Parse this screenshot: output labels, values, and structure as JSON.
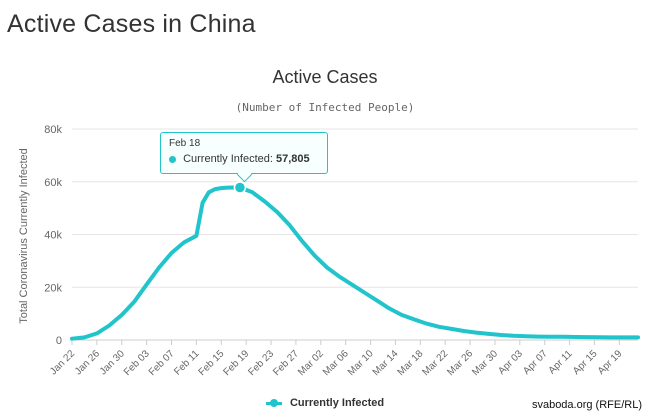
{
  "page": {
    "title": "Active Cases in China",
    "credit": "svaboda.org (RFE/RL)"
  },
  "chart_data": {
    "type": "line",
    "title": "Active Cases",
    "subtitle": "(Number of Infected People)",
    "ylabel": "Total Coronavirus Currently Infected",
    "xlabel": "",
    "ylim": [
      0,
      80000
    ],
    "yticks": [
      0,
      20000,
      40000,
      60000,
      80000
    ],
    "ytick_labels": [
      "0",
      "20k",
      "40k",
      "60k",
      "80k"
    ],
    "xtick_labels": [
      "Jan 22",
      "Jan 26",
      "Jan 30",
      "Feb 03",
      "Feb 07",
      "Feb 11",
      "Feb 15",
      "Feb 19",
      "Feb 23",
      "Feb 27",
      "Mar 02",
      "Mar 06",
      "Mar 10",
      "Mar 14",
      "Mar 18",
      "Mar 22",
      "Mar 26",
      "Mar 30",
      "Apr 03",
      "Apr 07",
      "Apr 11",
      "Apr 15",
      "Apr 19"
    ],
    "grid": true,
    "legend_position": "bottom",
    "color": "#22c4cc",
    "series": [
      {
        "name": "Currently Infected",
        "x": [
          "Jan 22",
          "Jan 24",
          "Jan 26",
          "Jan 28",
          "Jan 30",
          "Feb 01",
          "Feb 03",
          "Feb 05",
          "Feb 07",
          "Feb 09",
          "Feb 11",
          "Feb 12",
          "Feb 13",
          "Feb 14",
          "Feb 15",
          "Feb 16",
          "Feb 17",
          "Feb 18",
          "Feb 20",
          "Feb 22",
          "Feb 24",
          "Feb 26",
          "Feb 28",
          "Mar 01",
          "Mar 03",
          "Mar 05",
          "Mar 07",
          "Mar 09",
          "Mar 11",
          "Mar 13",
          "Mar 15",
          "Mar 17",
          "Mar 19",
          "Mar 21",
          "Mar 23",
          "Mar 25",
          "Mar 27",
          "Mar 29",
          "Mar 31",
          "Apr 02",
          "Apr 04",
          "Apr 06",
          "Apr 08",
          "Apr 10",
          "Apr 12",
          "Apr 14",
          "Apr 16",
          "Apr 18",
          "Apr 20",
          "Apr 22"
        ],
        "values": [
          500,
          1000,
          2500,
          5500,
          9500,
          14500,
          21000,
          27500,
          33000,
          37000,
          39500,
          52000,
          56000,
          57200,
          57600,
          57800,
          57805,
          57805,
          56000,
          52500,
          48500,
          43500,
          37500,
          32000,
          27500,
          24000,
          21000,
          18000,
          15000,
          12000,
          9500,
          7800,
          6200,
          5000,
          4200,
          3400,
          2800,
          2300,
          1900,
          1600,
          1400,
          1300,
          1250,
          1200,
          1150,
          1100,
          1050,
          1000,
          1000,
          1000
        ]
      }
    ],
    "tooltip": {
      "date": "Feb 18",
      "series_label": "Currently Infected:",
      "value_label": "57,805",
      "value": 57805
    }
  }
}
